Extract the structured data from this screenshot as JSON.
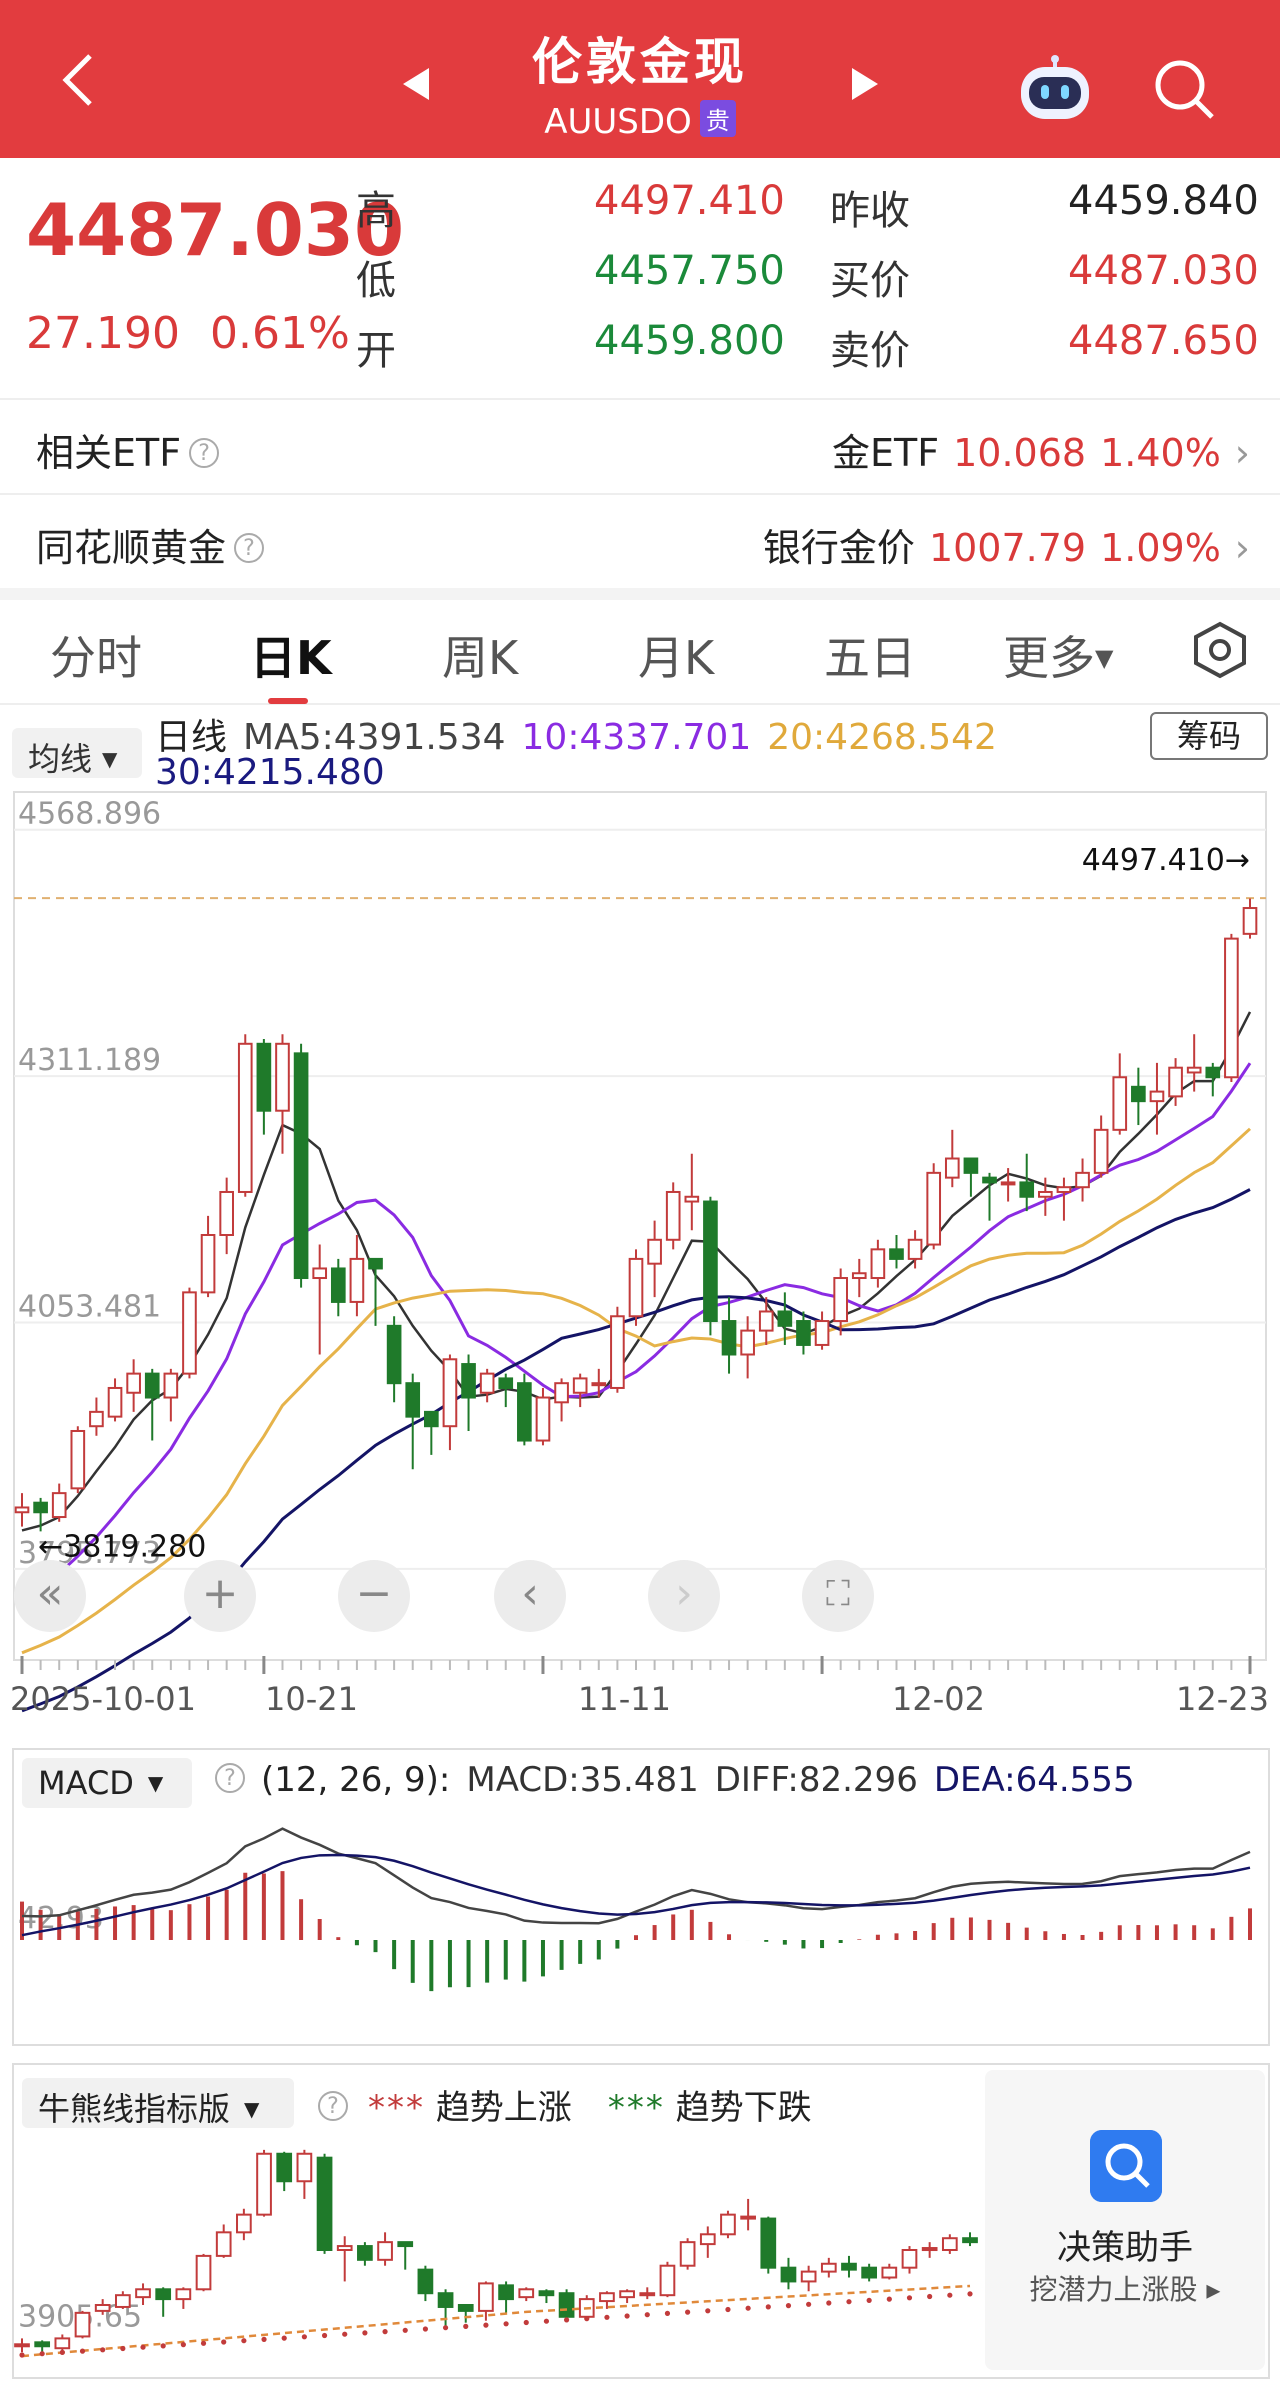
{
  "header": {
    "title": "伦敦金现",
    "code": "AUUSDO",
    "badge": "贵"
  },
  "quote": {
    "price": "4487.030",
    "change": "27.190",
    "change_pct": "0.61%",
    "high_label": "高",
    "high": "4497.410",
    "low_label": "低",
    "low": "4457.750",
    "open_label": "开",
    "open": "4459.800",
    "prev_close_label": "昨收",
    "prev_close": "4459.840",
    "bid_label": "买价",
    "bid": "4487.030",
    "ask_label": "卖价",
    "ask": "4487.650"
  },
  "related_etf": {
    "label": "相关ETF",
    "name": "金ETF",
    "value": "10.068",
    "pct": "1.40%"
  },
  "ths_gold": {
    "label": "同花顺黄金",
    "name": "银行金价",
    "value": "1007.79",
    "pct": "1.09%"
  },
  "tabs": [
    "分时",
    "日K",
    "周K",
    "月K",
    "五日",
    "更多"
  ],
  "ma_legend": {
    "selector": "均线",
    "period": "日线",
    "ma5": "MA5:4391.534",
    "ma10": "10:4337.701",
    "ma20": "20:4268.542",
    "ma30": "30:4215.480",
    "chip_button": "筹码"
  },
  "chart_labels": {
    "y_top": "4568.896",
    "y_mid": "4311.189",
    "y_low": "4053.481",
    "y_bottom": "3795.773",
    "max_marker": "4497.410→",
    "min_marker": "←3819.280"
  },
  "dates": [
    "2025-10-01",
    "10-21",
    "11-11",
    "12-02",
    "12-23"
  ],
  "macd": {
    "selector": "MACD",
    "params": "(12, 26, 9):",
    "macd": "MACD:35.481",
    "diff": "DIFF:82.296",
    "dea": "DEA:64.555",
    "axis": "42.93"
  },
  "bull_bear": {
    "selector": "牛熊线指标版",
    "rise": "趋势上涨",
    "fall": "趋势下跌",
    "axis": "3905.65"
  },
  "assistant": {
    "title": "决策助手",
    "subtitle": "挖潜力上涨股"
  },
  "colors": {
    "brand": "#e23c3f",
    "up": "#c23b3b",
    "down": "#1f7a2a",
    "ma5": "#333333",
    "ma10": "#8a2be2",
    "ma20": "#e6b34a",
    "ma30": "#141466"
  },
  "chart_data": {
    "type": "candlestick",
    "y_ticks": [
      4568.896,
      4311.189,
      4053.481,
      3795.773
    ],
    "high_marker": 4497.41,
    "low_marker": 3819.28,
    "x_labels": [
      "2025-10-01",
      "10-21",
      "11-11",
      "12-02",
      "12-23"
    ],
    "candles": [
      [
        3855,
        3860,
        3840,
        3875
      ],
      [
        3865,
        3855,
        3835,
        3870
      ],
      [
        3850,
        3875,
        3845,
        3885
      ],
      [
        3880,
        3940,
        3875,
        3945
      ],
      [
        3945,
        3960,
        3935,
        3975
      ],
      [
        3955,
        3985,
        3950,
        3995
      ],
      [
        3980,
        4000,
        3960,
        4015
      ],
      [
        4000,
        3975,
        3930,
        4005
      ],
      [
        3975,
        4000,
        3950,
        4005
      ],
      [
        4000,
        4085,
        3995,
        4090
      ],
      [
        4085,
        4145,
        4080,
        4165
      ],
      [
        4145,
        4190,
        4125,
        4205
      ],
      [
        4190,
        4345,
        4185,
        4355
      ],
      [
        4345,
        4275,
        4250,
        4350
      ],
      [
        4275,
        4345,
        4230,
        4355
      ],
      [
        4335,
        4100,
        4090,
        4345
      ],
      [
        4100,
        4110,
        4020,
        4135
      ],
      [
        4110,
        4075,
        4060,
        4120
      ],
      [
        4075,
        4120,
        4060,
        4145
      ],
      [
        4120,
        4110,
        4050,
        4120
      ],
      [
        4050,
        3990,
        3970,
        4060
      ],
      [
        3990,
        3955,
        3900,
        4000
      ],
      [
        3960,
        3945,
        3915,
        3960
      ],
      [
        3945,
        4015,
        3920,
        4020
      ],
      [
        4010,
        3975,
        3940,
        4020
      ],
      [
        3980,
        4000,
        3970,
        4005
      ],
      [
        3995,
        3985,
        3965,
        4000
      ],
      [
        3990,
        3930,
        3925,
        4000
      ],
      [
        3930,
        3975,
        3925,
        3985
      ],
      [
        3970,
        3990,
        3950,
        3995
      ],
      [
        3980,
        3995,
        3965,
        4000
      ],
      [
        3990,
        3990,
        3975,
        4005
      ],
      [
        3985,
        4060,
        3980,
        4070
      ],
      [
        4060,
        4120,
        4050,
        4130
      ],
      [
        4115,
        4140,
        4080,
        4160
      ],
      [
        4140,
        4190,
        4130,
        4200
      ],
      [
        4180,
        4185,
        4150,
        4230
      ],
      [
        4180,
        4055,
        4040,
        4185
      ],
      [
        4055,
        4020,
        4000,
        4080
      ],
      [
        4020,
        4045,
        3995,
        4060
      ],
      [
        4045,
        4065,
        4030,
        4080
      ],
      [
        4065,
        4050,
        4030,
        4085
      ],
      [
        4055,
        4030,
        4020,
        4065
      ],
      [
        4030,
        4055,
        4025,
        4065
      ],
      [
        4055,
        4100,
        4040,
        4110
      ],
      [
        4100,
        4105,
        4080,
        4120
      ],
      [
        4100,
        4130,
        4090,
        4140
      ],
      [
        4130,
        4120,
        4110,
        4145
      ],
      [
        4120,
        4140,
        4110,
        4150
      ],
      [
        4135,
        4210,
        4130,
        4220
      ],
      [
        4205,
        4225,
        4195,
        4255
      ],
      [
        4225,
        4210,
        4185,
        4225
      ],
      [
        4205,
        4200,
        4160,
        4210
      ],
      [
        4200,
        4200,
        4180,
        4215
      ],
      [
        4200,
        4185,
        4170,
        4230
      ],
      [
        4185,
        4190,
        4165,
        4205
      ],
      [
        4190,
        4195,
        4160,
        4205
      ],
      [
        4195,
        4210,
        4180,
        4225
      ],
      [
        4210,
        4255,
        4205,
        4270
      ],
      [
        4255,
        4310,
        4250,
        4335
      ],
      [
        4300,
        4285,
        4260,
        4320
      ],
      [
        4285,
        4295,
        4250,
        4325
      ],
      [
        4290,
        4320,
        4280,
        4330
      ],
      [
        4315,
        4320,
        4295,
        4355
      ],
      [
        4320,
        4310,
        4290,
        4325
      ],
      [
        4310,
        4455,
        4305,
        4460
      ],
      [
        4460,
        4487,
        4455,
        4497
      ]
    ],
    "series": [
      {
        "name": "MA5",
        "last": 4391.534
      },
      {
        "name": "10",
        "last": 4337.701
      },
      {
        "name": "20",
        "last": 4268.542
      },
      {
        "name": "30",
        "last": 4215.48
      }
    ],
    "ylim": [
      3690,
      4600
    ]
  }
}
